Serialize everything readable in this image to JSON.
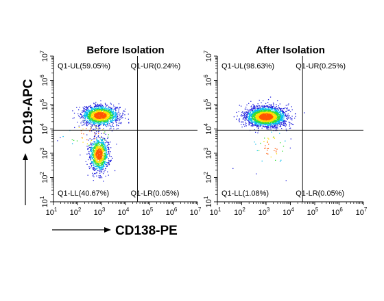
{
  "figure": {
    "y_axis_label": "CD19-APC",
    "x_axis_label": "CD138-PE",
    "colors": {
      "axis": "#000000",
      "density_low": "#2222dd",
      "density_mid": "#00bbee",
      "density_mid2": "#33dd33",
      "density_high": "#ffdd00",
      "density_peak": "#ff5500"
    }
  },
  "chart_data": [
    {
      "type": "scatter",
      "title": "Before Isolation",
      "x_scale": "log",
      "y_scale": "log",
      "xlim": [
        10,
        10000000
      ],
      "ylim": [
        10,
        10000000
      ],
      "x_ticks": [
        {
          "base": "10",
          "exp": "1"
        },
        {
          "base": "10",
          "exp": "2"
        },
        {
          "base": "10",
          "exp": "3"
        },
        {
          "base": "10",
          "exp": "4"
        },
        {
          "base": "10",
          "exp": "5"
        },
        {
          "base": "10",
          "exp": "6"
        },
        {
          "base": "10",
          "exp": "7"
        }
      ],
      "y_ticks": [
        {
          "base": "10",
          "exp": "1"
        },
        {
          "base": "10",
          "exp": "2"
        },
        {
          "base": "10",
          "exp": "3"
        },
        {
          "base": "10",
          "exp": "4"
        },
        {
          "base": "10",
          "exp": "5"
        },
        {
          "base": "10",
          "exp": "6"
        },
        {
          "base": "10",
          "exp": "7"
        }
      ],
      "gate": {
        "x": 31623,
        "y": 8913
      },
      "quadrants": {
        "UL": {
          "label": "Q1-UL(59.05%)",
          "percent": 59.05
        },
        "UR": {
          "label": "Q1-UR(0.24%)",
          "percent": 0.24
        },
        "LL": {
          "label": "Q1-LL(40.67%)",
          "percent": 40.67
        },
        "LR": {
          "label": "Q1-LR(0.05%)",
          "percent": 0.05
        }
      },
      "populations": [
        {
          "name": "",
          "n": 1500,
          "log_x_center": 2.95,
          "log_y_center": 4.55,
          "log_x_sd": 0.38,
          "log_y_sd": 0.2
        },
        {
          "name": "",
          "n": 1000,
          "log_x_center": 2.9,
          "log_y_center": 2.95,
          "log_x_sd": 0.2,
          "log_y_sd": 0.35
        },
        {
          "name": "",
          "n": 60,
          "log_x_center": 2.5,
          "log_y_center": 3.8,
          "log_x_sd": 0.6,
          "log_y_sd": 0.4
        }
      ],
      "scatter_seed": 7
    },
    {
      "type": "scatter",
      "title": "After Isolation",
      "x_scale": "log",
      "y_scale": "log",
      "xlim": [
        10,
        10000000
      ],
      "ylim": [
        10,
        10000000
      ],
      "x_ticks": [
        {
          "base": "10",
          "exp": "1"
        },
        {
          "base": "10",
          "exp": "2"
        },
        {
          "base": "10",
          "exp": "3"
        },
        {
          "base": "10",
          "exp": "4"
        },
        {
          "base": "10",
          "exp": "5"
        },
        {
          "base": "10",
          "exp": "6"
        },
        {
          "base": "10",
          "exp": "7"
        }
      ],
      "y_ticks": [
        {
          "base": "10",
          "exp": "1"
        },
        {
          "base": "10",
          "exp": "2"
        },
        {
          "base": "10",
          "exp": "3"
        },
        {
          "base": "10",
          "exp": "4"
        },
        {
          "base": "10",
          "exp": "5"
        },
        {
          "base": "10",
          "exp": "6"
        },
        {
          "base": "10",
          "exp": "7"
        }
      ],
      "gate": {
        "x": 31623,
        "y": 8913
      },
      "quadrants": {
        "UL": {
          "label": "Q1-UL(98.63%)",
          "percent": 98.63
        },
        "UR": {
          "label": "Q1-UR(0.25%)",
          "percent": 0.25
        },
        "LL": {
          "label": "Q1-LL(1.08%)",
          "percent": 1.08
        },
        "LR": {
          "label": "Q1-LR(0.05%)",
          "percent": 0.05
        }
      },
      "populations": [
        {
          "name": "",
          "n": 2300,
          "log_x_center": 3.0,
          "log_y_center": 4.5,
          "log_x_sd": 0.42,
          "log_y_sd": 0.2
        },
        {
          "name": "",
          "n": 50,
          "log_x_center": 3.2,
          "log_y_center": 3.2,
          "log_x_sd": 0.4,
          "log_y_sd": 0.45
        }
      ],
      "scatter_seed": 13
    }
  ]
}
